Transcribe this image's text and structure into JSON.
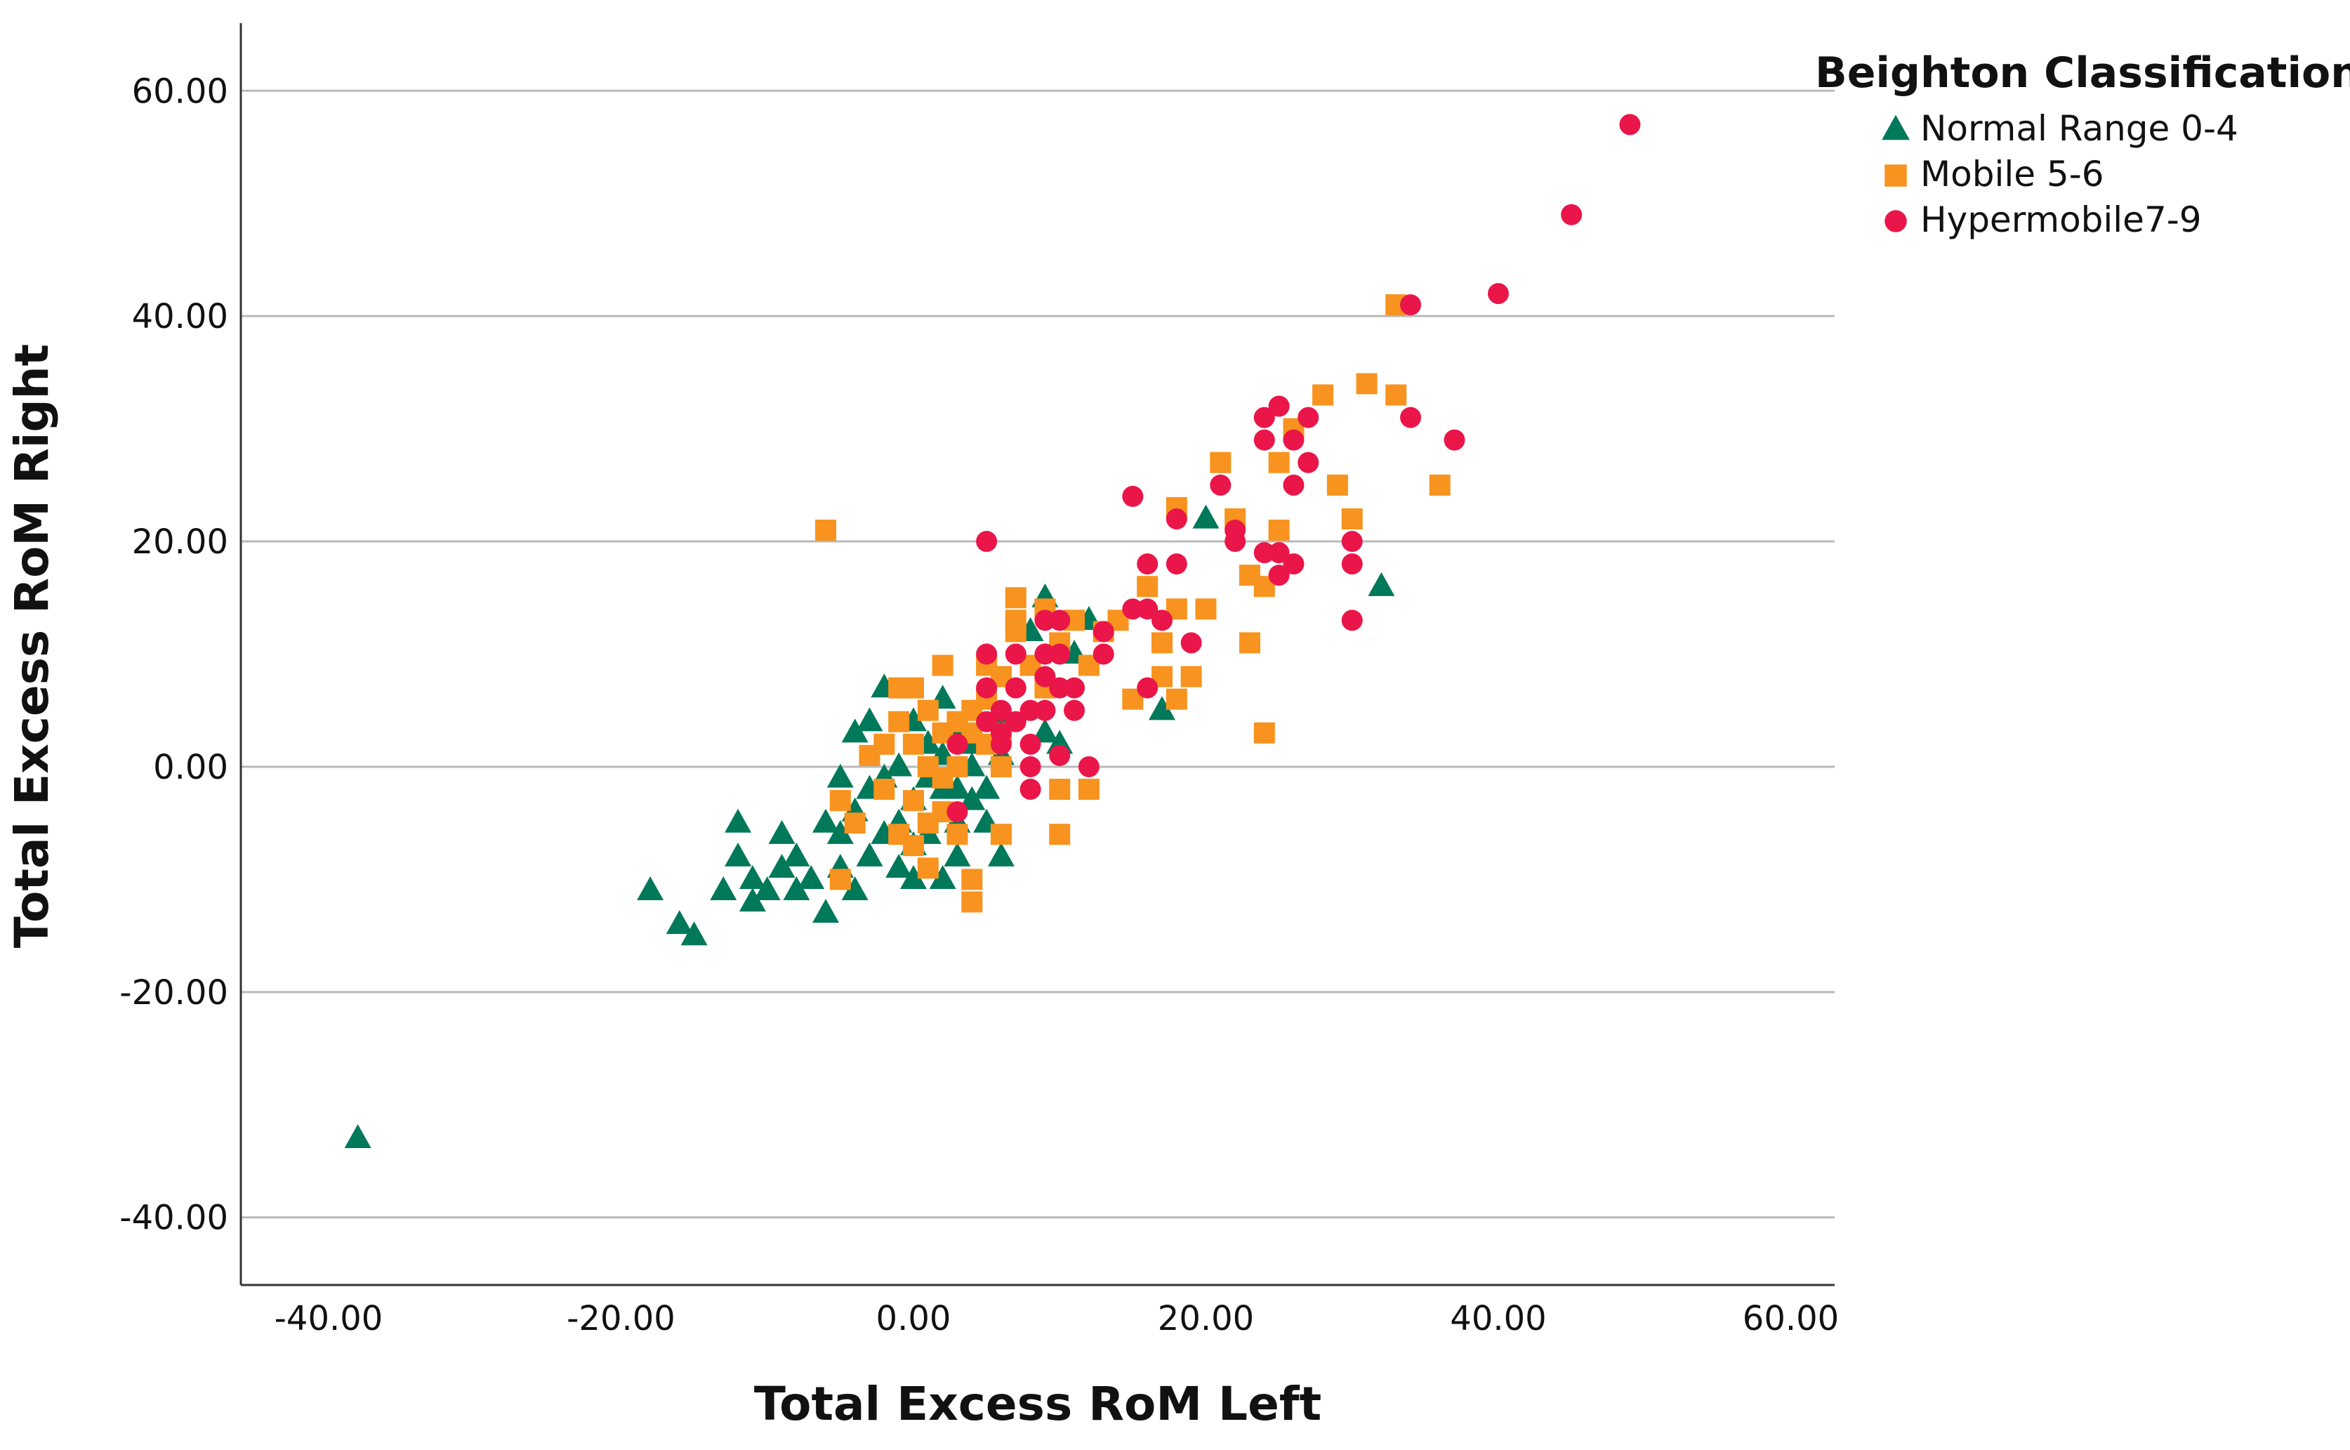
{
  "chart_data": {
    "type": "scatter",
    "title": "",
    "xlabel": "Total Excess RoM Left",
    "ylabel": "Total Excess RoM Right",
    "xlim": [
      -46,
      63
    ],
    "ylim": [
      -46,
      66
    ],
    "xticks": [
      -40,
      -20,
      0,
      20,
      40,
      60
    ],
    "yticks": [
      -40,
      -20,
      0,
      20,
      40,
      60
    ],
    "xtick_labels": [
      "-40.00",
      "-20.00",
      "0.00",
      "20.00",
      "40.00",
      "60.00"
    ],
    "ytick_labels": [
      "-40.00",
      "-20.00",
      "0.00",
      "20.00",
      "40.00",
      "60.00"
    ],
    "grid": "horizontal",
    "legend": {
      "title": "Beighton Classification",
      "position": "top-right, outside plot"
    },
    "series": [
      {
        "name": "Normal Range 0-4",
        "marker": "triangle",
        "color": "#00785a",
        "points": [
          [
            -38,
            -33
          ],
          [
            -18,
            -11
          ],
          [
            -16,
            -14
          ],
          [
            -15,
            -15
          ],
          [
            -13,
            -11
          ],
          [
            -12,
            -5
          ],
          [
            -12,
            -8
          ],
          [
            -11,
            -10
          ],
          [
            -11,
            -12
          ],
          [
            -10,
            -11
          ],
          [
            -9,
            -6
          ],
          [
            -9,
            -9
          ],
          [
            -8,
            -8
          ],
          [
            -8,
            -11
          ],
          [
            -7,
            -10
          ],
          [
            -6,
            -13
          ],
          [
            -6,
            -5
          ],
          [
            -5,
            -1
          ],
          [
            -5,
            -6
          ],
          [
            -5,
            -9
          ],
          [
            -4,
            -11
          ],
          [
            -4,
            3
          ],
          [
            -4,
            -4
          ],
          [
            -3,
            4
          ],
          [
            -3,
            -2
          ],
          [
            -3,
            -8
          ],
          [
            -2,
            -1
          ],
          [
            -2,
            -6
          ],
          [
            -2,
            7
          ],
          [
            -1,
            0
          ],
          [
            -1,
            -5
          ],
          [
            -1,
            -9
          ],
          [
            0,
            4
          ],
          [
            0,
            -3
          ],
          [
            0,
            -7
          ],
          [
            0,
            -10
          ],
          [
            1,
            2
          ],
          [
            1,
            -1
          ],
          [
            1,
            -6
          ],
          [
            2,
            6
          ],
          [
            2,
            1
          ],
          [
            2,
            -2
          ],
          [
            2,
            -10
          ],
          [
            3,
            3
          ],
          [
            3,
            -2
          ],
          [
            3,
            -5
          ],
          [
            3,
            -8
          ],
          [
            4,
            0
          ],
          [
            4,
            2
          ],
          [
            4,
            -3
          ],
          [
            5,
            -2
          ],
          [
            5,
            -5
          ],
          [
            6,
            1
          ],
          [
            6,
            4
          ],
          [
            6,
            -8
          ],
          [
            8,
            12
          ],
          [
            9,
            3
          ],
          [
            9,
            15
          ],
          [
            10,
            2
          ],
          [
            11,
            10
          ],
          [
            12,
            13
          ],
          [
            17,
            5
          ],
          [
            20,
            22
          ],
          [
            32,
            16
          ]
        ]
      },
      {
        "name": "Mobile 5-6",
        "marker": "square",
        "color": "#f7931e",
        "points": [
          [
            -6,
            21
          ],
          [
            -5,
            -3
          ],
          [
            -5,
            -10
          ],
          [
            -4,
            -5
          ],
          [
            -3,
            1
          ],
          [
            -2,
            -2
          ],
          [
            -2,
            2
          ],
          [
            -1,
            4
          ],
          [
            -1,
            -6
          ],
          [
            -1,
            7
          ],
          [
            0,
            -3
          ],
          [
            0,
            -7
          ],
          [
            0,
            2
          ],
          [
            0,
            7
          ],
          [
            1,
            -5
          ],
          [
            1,
            -9
          ],
          [
            1,
            0
          ],
          [
            1,
            5
          ],
          [
            2,
            -1
          ],
          [
            2,
            -4
          ],
          [
            2,
            9
          ],
          [
            2,
            3
          ],
          [
            3,
            0
          ],
          [
            3,
            4
          ],
          [
            3,
            -6
          ],
          [
            4,
            -10
          ],
          [
            4,
            -12
          ],
          [
            4,
            3
          ],
          [
            4,
            5
          ],
          [
            5,
            2
          ],
          [
            5,
            6
          ],
          [
            5,
            9
          ],
          [
            6,
            -6
          ],
          [
            6,
            0
          ],
          [
            6,
            3
          ],
          [
            6,
            8
          ],
          [
            7,
            12
          ],
          [
            7,
            15
          ],
          [
            7,
            13
          ],
          [
            8,
            9
          ],
          [
            9,
            7
          ],
          [
            9,
            14
          ],
          [
            10,
            -2
          ],
          [
            10,
            -6
          ],
          [
            10,
            11
          ],
          [
            11,
            13
          ],
          [
            12,
            -2
          ],
          [
            12,
            9
          ],
          [
            13,
            12
          ],
          [
            14,
            13
          ],
          [
            15,
            6
          ],
          [
            16,
            16
          ],
          [
            17,
            8
          ],
          [
            17,
            11
          ],
          [
            18,
            14
          ],
          [
            18,
            23
          ],
          [
            18,
            6
          ],
          [
            19,
            8
          ],
          [
            20,
            14
          ],
          [
            21,
            27
          ],
          [
            22,
            22
          ],
          [
            23,
            11
          ],
          [
            23,
            17
          ],
          [
            24,
            16
          ],
          [
            24,
            3
          ],
          [
            25,
            21
          ],
          [
            25,
            27
          ],
          [
            26,
            30
          ],
          [
            28,
            33
          ],
          [
            29,
            25
          ],
          [
            30,
            22
          ],
          [
            31,
            34
          ],
          [
            33,
            41
          ],
          [
            33,
            33
          ],
          [
            36,
            25
          ]
        ]
      },
      {
        "name": "Hypermobile7-9",
        "marker": "circle",
        "color": "#ea1548",
        "points": [
          [
            3,
            -4
          ],
          [
            3,
            2
          ],
          [
            5,
            20
          ],
          [
            5,
            10
          ],
          [
            5,
            7
          ],
          [
            5,
            4
          ],
          [
            6,
            3
          ],
          [
            6,
            5
          ],
          [
            6,
            2
          ],
          [
            7,
            10
          ],
          [
            7,
            7
          ],
          [
            7,
            4
          ],
          [
            8,
            5
          ],
          [
            8,
            2
          ],
          [
            8,
            0
          ],
          [
            8,
            -2
          ],
          [
            9,
            13
          ],
          [
            9,
            10
          ],
          [
            9,
            8
          ],
          [
            9,
            5
          ],
          [
            10,
            13
          ],
          [
            10,
            10
          ],
          [
            10,
            7
          ],
          [
            10,
            1
          ],
          [
            11,
            7
          ],
          [
            11,
            5
          ],
          [
            12,
            0
          ],
          [
            13,
            10
          ],
          [
            13,
            12
          ],
          [
            15,
            24
          ],
          [
            15,
            14
          ],
          [
            16,
            18
          ],
          [
            16,
            14
          ],
          [
            16,
            7
          ],
          [
            17,
            13
          ],
          [
            18,
            22
          ],
          [
            18,
            18
          ],
          [
            19,
            11
          ],
          [
            21,
            25
          ],
          [
            22,
            21
          ],
          [
            22,
            20
          ],
          [
            24,
            31
          ],
          [
            24,
            29
          ],
          [
            24,
            19
          ],
          [
            25,
            32
          ],
          [
            25,
            17
          ],
          [
            25,
            19
          ],
          [
            26,
            29
          ],
          [
            26,
            25
          ],
          [
            26,
            18
          ],
          [
            27,
            31
          ],
          [
            27,
            27
          ],
          [
            30,
            20
          ],
          [
            30,
            18
          ],
          [
            30,
            13
          ],
          [
            34,
            41
          ],
          [
            34,
            31
          ],
          [
            37,
            29
          ],
          [
            40,
            42
          ],
          [
            45,
            49
          ],
          [
            49,
            57
          ]
        ]
      }
    ]
  }
}
